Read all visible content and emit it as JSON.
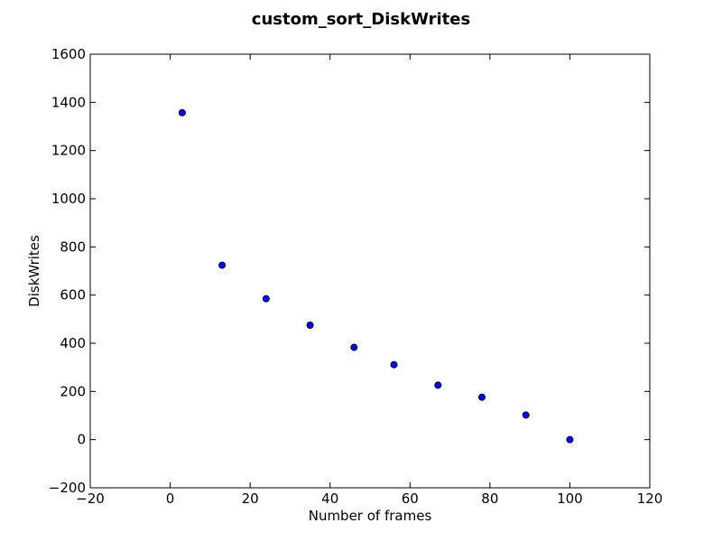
{
  "chart_data": {
    "type": "scatter",
    "title": "custom_sort_DiskWrites",
    "xlabel": "Number of frames",
    "ylabel": "DiskWrites",
    "xlim": [
      -20,
      120
    ],
    "ylim": [
      -200,
      1600
    ],
    "xticks": [
      -20,
      0,
      20,
      40,
      60,
      80,
      100,
      120
    ],
    "yticks": [
      -200,
      0,
      200,
      400,
      600,
      800,
      1000,
      1200,
      1400,
      1600
    ],
    "grid": false,
    "marker_color": "#0000ff",
    "series": [
      {
        "x": [
          3,
          13,
          24,
          35,
          46,
          56,
          67,
          78,
          89,
          100
        ],
        "y": [
          1357,
          724,
          585,
          475,
          383,
          311,
          226,
          176,
          102,
          0
        ]
      }
    ]
  }
}
